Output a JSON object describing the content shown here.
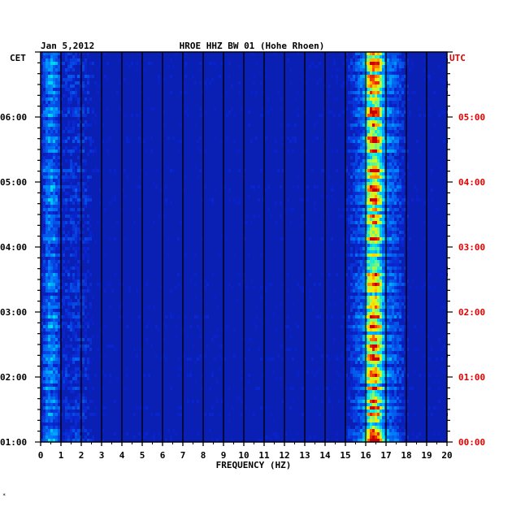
{
  "chart_data": {
    "type": "heatmap",
    "date": "Jan 5,2012",
    "title": "HROE HHZ BW 01 (Hohe Rhoen)",
    "left_axis_label": "CET",
    "right_axis_label": "UTC",
    "xlabel": "FREQUENCY (HZ)",
    "x_ticks": [
      "0",
      "1",
      "2",
      "3",
      "4",
      "5",
      "6",
      "7",
      "8",
      "9",
      "10",
      "11",
      "12",
      "13",
      "14",
      "15",
      "16",
      "17",
      "18",
      "19",
      "20"
    ],
    "xlim": [
      0,
      20
    ],
    "left_time_ticks": [
      "06:00",
      "05:00",
      "04:00",
      "03:00",
      "02:00",
      "01:00"
    ],
    "right_time_ticks": [
      "05:00",
      "04:00",
      "03:00",
      "02:00",
      "01:00",
      "00:00"
    ],
    "tick_hours_utc": [
      5,
      4,
      3,
      2,
      1,
      0
    ],
    "time_range_utc_hours": [
      0,
      6
    ],
    "grid": true,
    "energy_bands_hz": [
      {
        "from": 0.1,
        "to": 0.9,
        "level": "high"
      },
      {
        "from": 0.9,
        "to": 2.5,
        "level": "moderate"
      },
      {
        "from": 15.3,
        "to": 17.8,
        "level": "high"
      },
      {
        "from": 16.0,
        "to": 16.8,
        "level": "peak"
      }
    ],
    "colors": {
      "background": "#0a1fb4",
      "grid": "#000000",
      "left_labels": "#000000",
      "right_labels": "#e00000"
    }
  },
  "corner_mark": "*"
}
